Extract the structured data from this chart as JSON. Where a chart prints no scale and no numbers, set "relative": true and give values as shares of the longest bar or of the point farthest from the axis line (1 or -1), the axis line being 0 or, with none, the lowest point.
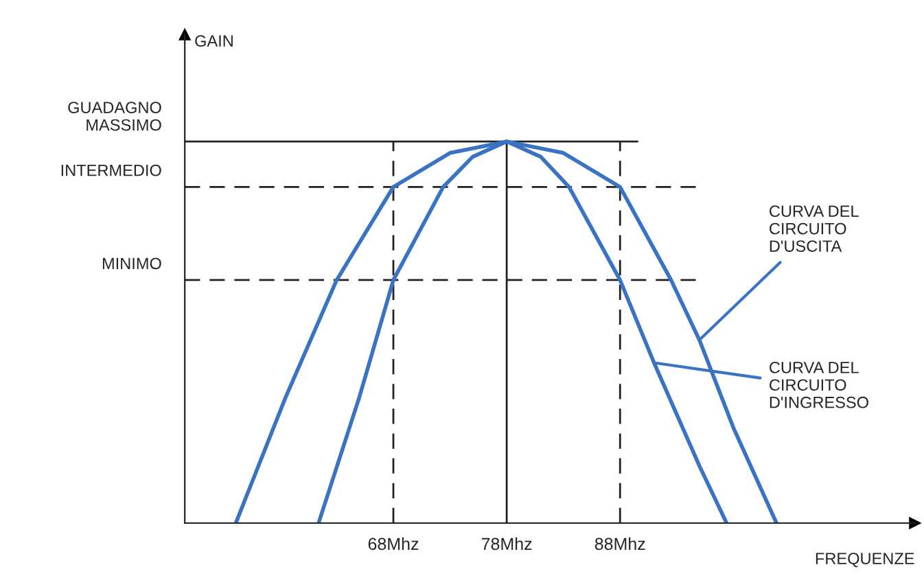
{
  "chart_data": {
    "type": "line",
    "relative": true,
    "annotations": [
      "GAIN"
    ],
    "xlabel": "FREQUENZE",
    "xlim": [
      49.6,
      114
    ],
    "xticks": [
      {
        "value": 68,
        "label": "68Mhz"
      },
      {
        "value": 78,
        "label": "78Mhz"
      },
      {
        "value": 88,
        "label": "88Mhz"
      }
    ],
    "series": [
      {
        "name": "CURVA DEL\nCIRCUITO\nD'USCITA",
        "color": "#3a72c4",
        "x": [
          54.1,
          58.5,
          63,
          68,
          73,
          78,
          83,
          88,
          92.5,
          95,
          98,
          101.8
        ],
        "values": [
          0,
          0.33,
          0.637,
          0.881,
          0.97,
          1,
          0.97,
          0.881,
          0.637,
          0.48,
          0.25,
          0
        ]
      },
      {
        "name": "CURVA DEL\nCIRCUITO\nD'INGRESSO",
        "color": "#3a72c4",
        "x": [
          61.4,
          65,
          68,
          72.4,
          75,
          78,
          81,
          83.5,
          88,
          91,
          95,
          97.4
        ],
        "values": [
          0,
          0.33,
          0.637,
          0.881,
          0.96,
          1,
          0.96,
          0.881,
          0.637,
          0.42,
          0.15,
          0
        ]
      }
    ],
    "ref_lines": [
      {
        "axis": "y",
        "value": 1,
        "label": "GUADAGNO\nMASSIMO",
        "line_style": "solid",
        "color": "#222222"
      },
      {
        "axis": "y",
        "value": 0.881,
        "label": "INTERMEDIO",
        "line_style": "dashed",
        "color": "#222222"
      },
      {
        "axis": "y",
        "value": 0.637,
        "label": "MINIMO",
        "line_style": "dashed",
        "color": "#222222"
      },
      {
        "axis": "x",
        "value": 68,
        "label": null,
        "line_style": "dashed",
        "color": "#222222"
      },
      {
        "axis": "x",
        "value": 78,
        "label": null,
        "line_style": "solid",
        "color": "#222222"
      },
      {
        "axis": "x",
        "value": 88,
        "label": null,
        "line_style": "dashed",
        "color": "#222222"
      }
    ],
    "grid": false,
    "legend": false,
    "marker": "none",
    "line_style": "solid"
  }
}
